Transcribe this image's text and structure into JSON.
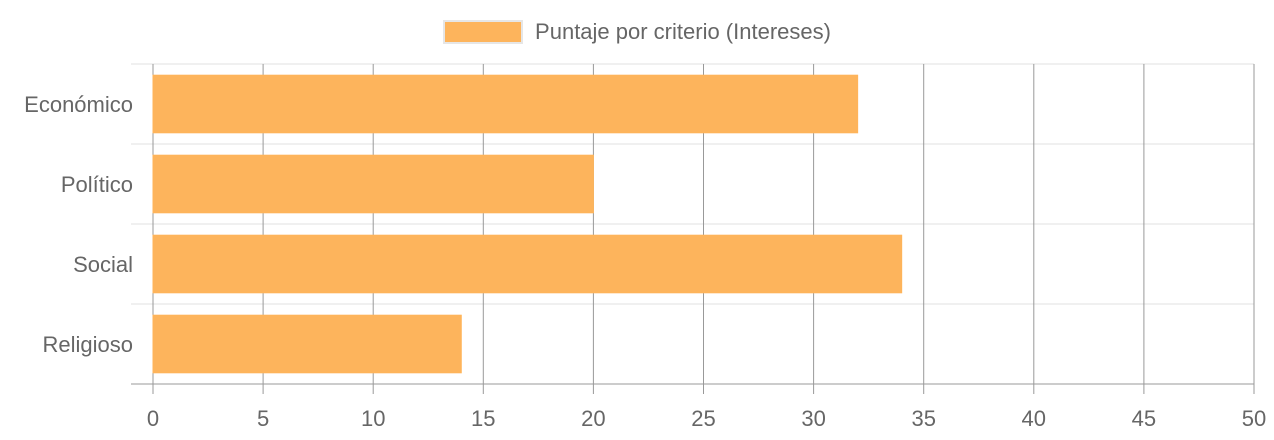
{
  "chart_data": {
    "type": "bar",
    "orientation": "horizontal",
    "title": "",
    "xlabel": "",
    "ylabel": "",
    "categories": [
      "Económico",
      "Político",
      "Social",
      "Religioso"
    ],
    "series": [
      {
        "name": "Puntaje por criterio (Intereses)",
        "values": [
          32,
          20,
          34,
          14
        ]
      }
    ],
    "xlim": [
      0,
      50
    ],
    "x_ticks": [
      "0",
      "5",
      "10",
      "15",
      "20",
      "25",
      "30",
      "35",
      "40",
      "45",
      "50"
    ],
    "grid": true,
    "legend_position": "top-center",
    "colors": {
      "bar": "#FDB45C",
      "bar_border": "#FFB55A",
      "grid": "#e0e0e0",
      "grid_strong": "#999999",
      "text": "#666666"
    }
  }
}
